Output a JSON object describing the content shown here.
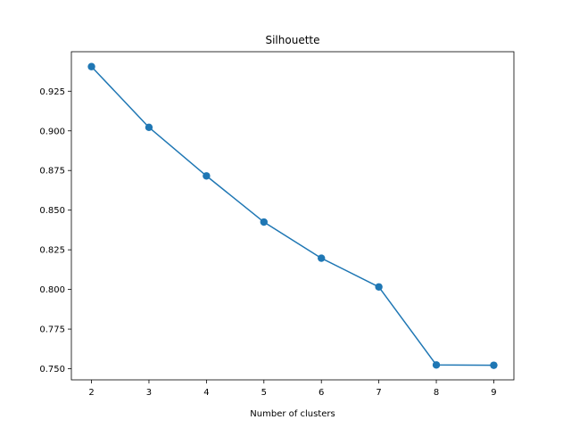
{
  "chart_data": {
    "type": "line",
    "title": "Silhouette",
    "xlabel": "Number of clusters",
    "ylabel": "",
    "x": [
      2,
      3,
      4,
      5,
      6,
      7,
      8,
      9
    ],
    "series": [
      {
        "values": [
          0.9405,
          0.9022,
          0.8716,
          0.8425,
          0.8197,
          0.8016,
          0.7524,
          0.7522
        ],
        "color": "#1f77b4",
        "marker": "circle"
      }
    ],
    "xticks": [
      2,
      3,
      4,
      5,
      6,
      7,
      8,
      9
    ],
    "yticks": [
      "0.750",
      "0.775",
      "0.800",
      "0.825",
      "0.850",
      "0.875",
      "0.900",
      "0.925"
    ],
    "xlim": [
      1.65,
      9.35
    ],
    "ylim": [
      0.743,
      0.9499
    ],
    "grid": false,
    "legend": false
  }
}
